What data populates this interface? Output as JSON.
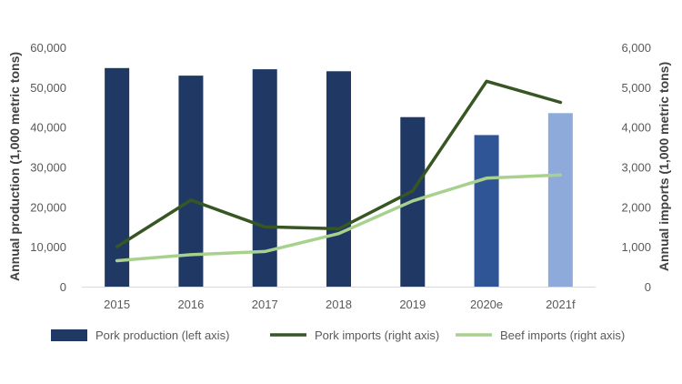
{
  "chart_data": {
    "type": "bar+line",
    "categories": [
      "2015",
      "2016",
      "2017",
      "2018",
      "2019",
      "2020e",
      "2021f"
    ],
    "series": [
      {
        "name": "Pork production (left axis)",
        "type": "bar",
        "axis": "left",
        "values": [
          54800,
          52900,
          54500,
          54000,
          42500,
          38000,
          43500
        ],
        "colors": [
          "#1f3864",
          "#1f3864",
          "#1f3864",
          "#1f3864",
          "#1f3864",
          "#2f5597",
          "#8eaadb"
        ]
      },
      {
        "name": "Pork imports (right axis)",
        "type": "line",
        "axis": "right",
        "color": "#375623",
        "values": [
          1000,
          2170,
          1500,
          1450,
          2400,
          5150,
          4620
        ]
      },
      {
        "name": "Beef imports (right axis)",
        "type": "line",
        "axis": "right",
        "color": "#a9d18e",
        "values": [
          650,
          800,
          880,
          1330,
          2150,
          2720,
          2800
        ]
      }
    ],
    "y_left": {
      "label": "Annual production (1,000 metric tons)",
      "range": [
        0,
        60000
      ],
      "ticks": [
        "0",
        "10,000",
        "20,000",
        "30,000",
        "40,000",
        "50,000",
        "60,000"
      ]
    },
    "y_right": {
      "label": "Annual imports (1,000 metric tons)",
      "range": [
        0,
        6000
      ],
      "ticks": [
        "0",
        "1,000",
        "2,000",
        "3,000",
        "4,000",
        "5,000",
        "6,000"
      ]
    },
    "legend": {
      "position": "bottom",
      "items": [
        "Pork production (left axis)",
        "Pork imports (right axis)",
        "Beef imports (right axis)"
      ]
    },
    "grid": false
  }
}
